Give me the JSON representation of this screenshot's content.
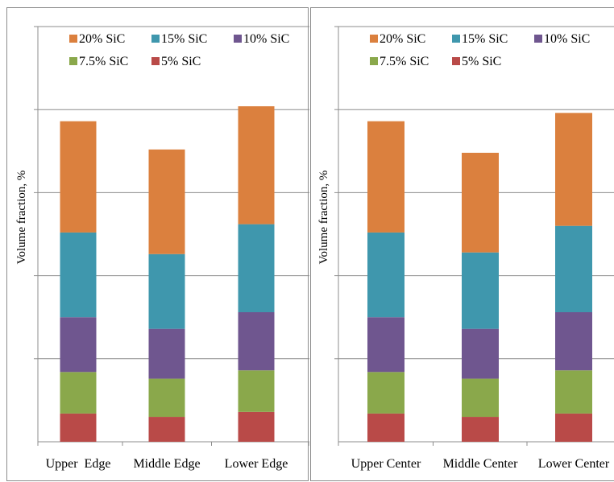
{
  "chart_data": [
    {
      "type": "bar",
      "stacked": true,
      "categories": [
        "Upper  Edge",
        "Middle Edge",
        "Lower Edge"
      ],
      "series": [
        {
          "name": "5% SiC",
          "color": "#b94a48",
          "values": [
            8.5,
            7.5,
            9.0
          ]
        },
        {
          "name": "7.5% SiC",
          "color": "#8aa84b",
          "values": [
            12.5,
            11.5,
            12.5
          ]
        },
        {
          "name": "10% SiC",
          "color": "#6f568f",
          "values": [
            16.5,
            15.0,
            17.5
          ]
        },
        {
          "name": "15% SiC",
          "color": "#3f97ad",
          "values": [
            25.5,
            22.5,
            26.5
          ]
        },
        {
          "name": "20% SiC",
          "color": "#db803e",
          "values": [
            33.5,
            31.5,
            35.5
          ]
        }
      ],
      "ylabel": "Volume fraction, %",
      "ylim": [
        0,
        125
      ],
      "grid": true,
      "legend": "top"
    },
    {
      "type": "bar",
      "stacked": true,
      "categories": [
        "Upper Center",
        "Middle Center",
        "Lower Center"
      ],
      "series": [
        {
          "name": "5% SiC",
          "color": "#b94a48",
          "values": [
            8.5,
            7.5,
            8.5
          ]
        },
        {
          "name": "7.5% SiC",
          "color": "#8aa84b",
          "values": [
            12.5,
            11.5,
            13.0
          ]
        },
        {
          "name": "10% SiC",
          "color": "#6f568f",
          "values": [
            16.5,
            15.0,
            17.5
          ]
        },
        {
          "name": "15% SiC",
          "color": "#3f97ad",
          "values": [
            25.5,
            23.0,
            26.0
          ]
        },
        {
          "name": "20% SiC",
          "color": "#db803e",
          "values": [
            33.5,
            30.0,
            34.0
          ]
        }
      ],
      "ylabel": "Volume fraction, %",
      "ylim": [
        0,
        125
      ],
      "grid": true,
      "legend": "top"
    }
  ]
}
